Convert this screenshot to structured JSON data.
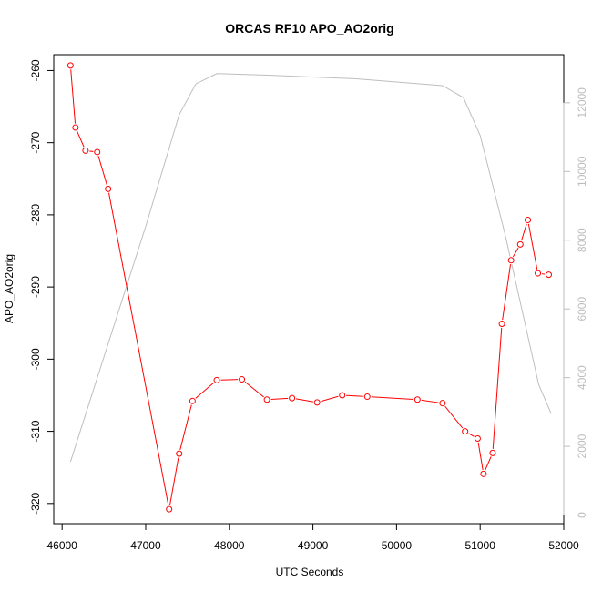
{
  "chart_data": {
    "type": "line",
    "title": "ORCAS RF10 APO_AO2orig",
    "xlabel": "UTC Seconds",
    "ylabel": "APO_AO2orig",
    "y2label": "",
    "xlim": [
      45900,
      52000
    ],
    "ylim": [
      -322.8,
      -257.8
    ],
    "y2lim": [
      -250,
      13400
    ],
    "x_ticks": [
      46000,
      47000,
      48000,
      49000,
      50000,
      51000,
      52000
    ],
    "y_ticks": [
      -320,
      -310,
      -300,
      -290,
      -280,
      -270,
      -260
    ],
    "y2_ticks": [
      0,
      2000,
      4000,
      6000,
      8000,
      10000,
      12000
    ],
    "grid": false,
    "series": [
      {
        "color": "#ff0000",
        "marker": "open-circle",
        "axis": "left",
        "x": [
          46100,
          46160,
          46280,
          46420,
          46550,
          47280,
          47400,
          47560,
          47850,
          48150,
          48450,
          48750,
          49050,
          49350,
          49650,
          50250,
          50550,
          50820,
          50970,
          51040,
          51150,
          51260,
          51370,
          51480,
          51570,
          51690,
          51820
        ],
        "y": [
          -259.3,
          -267.9,
          -271.1,
          -271.3,
          -276.4,
          -320.8,
          -313.1,
          -305.8,
          -302.9,
          -302.8,
          -305.6,
          -305.4,
          -306.0,
          -305.0,
          -305.2,
          -305.6,
          -306.1,
          -310.0,
          -311.0,
          -315.9,
          -313.0,
          -295.1,
          -286.3,
          -284.1,
          -280.7,
          -288.1,
          -288.3
        ]
      },
      {
        "color": "#bebebe",
        "marker": "none",
        "axis": "right",
        "x": [
          46100,
          46500,
          47000,
          47400,
          47600,
          47850,
          48500,
          49500,
          50550,
          50800,
          51000,
          51300,
          51700,
          51850
        ],
        "y": [
          1550,
          4600,
          8400,
          11650,
          12550,
          12850,
          12800,
          12700,
          12500,
          12150,
          11050,
          8150,
          3800,
          2950
        ]
      }
    ]
  }
}
